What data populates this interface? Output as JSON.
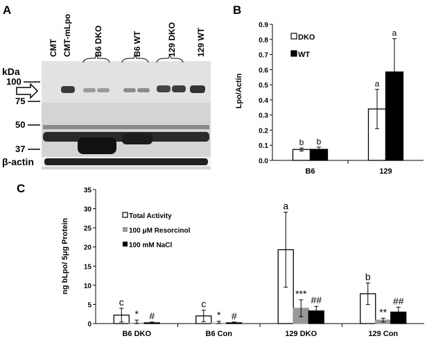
{
  "panel_labels": {
    "a": "A",
    "b": "B",
    "c": "C"
  },
  "blot": {
    "lanes": [
      "CMT",
      "CMT-mLpo"
    ],
    "groups": [
      "B6 DKO",
      "B6 WT",
      "129 DKO",
      "129 WT"
    ],
    "kda_label": "kDa",
    "markers": [
      "100",
      "75",
      "50",
      "37"
    ],
    "actin_label": "β-actin"
  },
  "chart_data": [
    {
      "type": "bar",
      "panel": "B",
      "categories": [
        "B6",
        "129"
      ],
      "ylabel": "Lpo/Actin",
      "xlabel": "",
      "ylim": [
        0,
        0.9
      ],
      "yticks": [
        "0.0",
        "0.1",
        "0.2",
        "0.3",
        "0.4",
        "0.5",
        "0.6",
        "0.7",
        "0.8",
        "0.9"
      ],
      "legend_position": "top-left",
      "series": [
        {
          "name": "DKO",
          "color": "#ffffff",
          "values": [
            0.072,
            0.34
          ],
          "errors": [
            0.01,
            0.13
          ],
          "letters": [
            "b",
            "a"
          ]
        },
        {
          "name": "WT",
          "color": "#000000",
          "values": [
            0.073,
            0.585
          ],
          "errors": [
            0.015,
            0.22
          ],
          "letters": [
            "b",
            "a"
          ]
        }
      ],
      "grid": false
    },
    {
      "type": "bar",
      "panel": "C",
      "categories": [
        "B6 DKO",
        "B6 Con",
        "129 DKO",
        "129 Con"
      ],
      "ylabel": "ng bLpo/ 5μg Protein",
      "xlabel": "",
      "ylim": [
        0,
        35
      ],
      "yticks": [
        "0",
        "5",
        "10",
        "15",
        "20",
        "25",
        "30",
        "35"
      ],
      "legend_position": "top-left",
      "series": [
        {
          "name": "Total Activity",
          "color": "#ffffff",
          "values": [
            2.2,
            2.0,
            19.3,
            7.8
          ],
          "errors": [
            1.8,
            1.5,
            9.8,
            2.8
          ],
          "labels": [
            "c",
            "c",
            "a",
            "b"
          ]
        },
        {
          "name": "100 μM Resorcinol",
          "color": "#999999",
          "values": [
            0.1,
            0.1,
            4.0,
            0.9
          ],
          "errors": [
            0.8,
            0.5,
            2.2,
            0.5
          ],
          "labels": [
            "*",
            "*",
            "***",
            "**"
          ]
        },
        {
          "name": "100 mM NaCl",
          "color": "#000000",
          "values": [
            0.2,
            0.2,
            3.3,
            3.0
          ],
          "errors": [
            0.2,
            0.2,
            1.2,
            1.3
          ],
          "labels": [
            "#",
            "#",
            "##",
            "##"
          ]
        }
      ],
      "grid": false
    }
  ]
}
